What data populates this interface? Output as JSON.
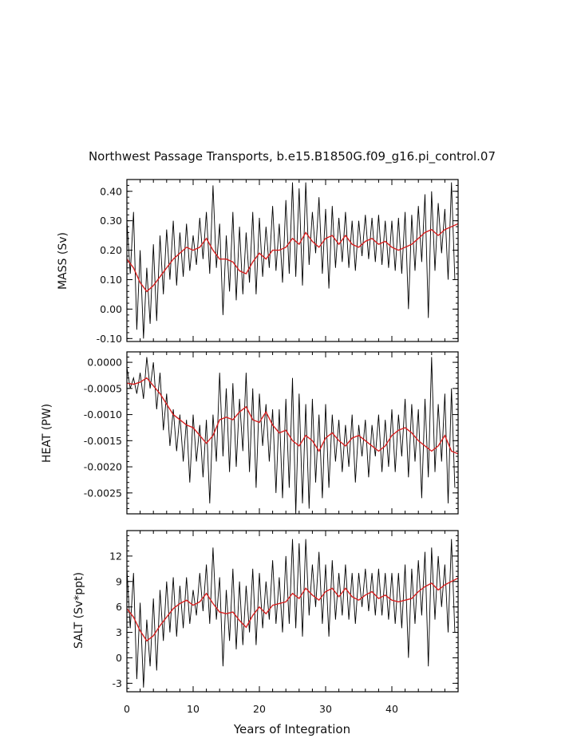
{
  "chart_data": {
    "type": "line",
    "title": "Northwest Passage Transports, b.e15.B1850G.f09_g16.pi_control.07",
    "xlabel": "Years of Integration",
    "xlim": [
      0,
      50
    ],
    "x_ticks": [
      "0",
      "10",
      "20",
      "30",
      "40"
    ],
    "series_colors": {
      "raw": "#000000",
      "smoothed": "#d62020"
    },
    "panels": [
      {
        "name": "mass",
        "ylabel": "MASS (Sv)",
        "ylim": [
          -0.11,
          0.44
        ],
        "y_ticks": [
          "0.40",
          "0.30",
          "0.20",
          "0.10",
          "0.00",
          "-0.10"
        ],
        "smoothed": {
          "x": [
            0,
            1,
            2,
            3,
            4,
            5,
            6,
            7,
            8,
            9,
            10,
            11,
            12,
            13,
            14,
            15,
            16,
            17,
            18,
            19,
            20,
            21,
            22,
            23,
            24,
            25,
            26,
            27,
            28,
            29,
            30,
            31,
            32,
            33,
            34,
            35,
            36,
            37,
            38,
            39,
            40,
            41,
            42,
            43,
            44,
            45,
            46,
            47,
            48,
            49,
            50
          ],
          "values": [
            0.17,
            0.14,
            0.09,
            0.06,
            0.08,
            0.11,
            0.14,
            0.17,
            0.19,
            0.21,
            0.2,
            0.21,
            0.24,
            0.2,
            0.17,
            0.17,
            0.16,
            0.13,
            0.12,
            0.16,
            0.19,
            0.17,
            0.2,
            0.2,
            0.21,
            0.24,
            0.22,
            0.26,
            0.23,
            0.21,
            0.24,
            0.25,
            0.22,
            0.25,
            0.22,
            0.21,
            0.23,
            0.24,
            0.22,
            0.23,
            0.21,
            0.2,
            0.21,
            0.22,
            0.24,
            0.26,
            0.27,
            0.25,
            0.27,
            0.28,
            0.29
          ]
        },
        "raw": {
          "x": [
            0,
            0.5,
            1,
            1.5,
            2,
            2.5,
            3,
            3.5,
            4,
            4.5,
            5,
            5.5,
            6,
            6.5,
            7,
            7.5,
            8,
            8.5,
            9,
            9.5,
            10,
            10.5,
            11,
            11.5,
            12,
            12.5,
            13,
            13.5,
            14,
            14.5,
            15,
            15.5,
            16,
            16.5,
            17,
            17.5,
            18,
            18.5,
            19,
            19.5,
            20,
            20.5,
            21,
            21.5,
            22,
            22.5,
            23,
            23.5,
            24,
            24.5,
            25,
            25.5,
            26,
            26.5,
            27,
            27.5,
            28,
            28.5,
            29,
            29.5,
            30,
            30.5,
            31,
            31.5,
            32,
            32.5,
            33,
            33.5,
            34,
            34.5,
            35,
            35.5,
            36,
            36.5,
            37,
            37.5,
            38,
            38.5,
            39,
            39.5,
            40,
            40.5,
            41,
            41.5,
            42,
            42.5,
            43,
            43.5,
            44,
            44.5,
            45,
            45.5,
            46,
            46.5,
            47,
            47.5,
            48,
            48.5,
            49,
            49.5
          ],
          "values": [
            0.3,
            0.12,
            0.33,
            -0.07,
            0.2,
            -0.1,
            0.14,
            -0.05,
            0.22,
            -0.04,
            0.25,
            0.05,
            0.27,
            0.1,
            0.3,
            0.08,
            0.26,
            0.11,
            0.29,
            0.13,
            0.25,
            0.15,
            0.31,
            0.17,
            0.33,
            0.12,
            0.42,
            0.14,
            0.29,
            -0.02,
            0.25,
            0.06,
            0.33,
            0.03,
            0.28,
            0.05,
            0.26,
            0.09,
            0.33,
            0.05,
            0.31,
            0.11,
            0.28,
            0.14,
            0.35,
            0.13,
            0.29,
            0.09,
            0.37,
            0.12,
            0.43,
            0.11,
            0.41,
            0.08,
            0.43,
            0.15,
            0.33,
            0.19,
            0.38,
            0.12,
            0.34,
            0.07,
            0.35,
            0.14,
            0.31,
            0.16,
            0.33,
            0.14,
            0.3,
            0.13,
            0.3,
            0.18,
            0.32,
            0.17,
            0.31,
            0.16,
            0.32,
            0.15,
            0.3,
            0.14,
            0.3,
            0.13,
            0.31,
            0.12,
            0.33,
            0.0,
            0.32,
            0.13,
            0.35,
            0.16,
            0.39,
            -0.03,
            0.4,
            0.13,
            0.36,
            0.19,
            0.34,
            0.1,
            0.43,
            0.1
          ]
        }
      },
      {
        "name": "heat",
        "ylabel": "HEAT (PW)",
        "ylim": [
          -0.0029,
          0.0002
        ],
        "y_ticks": [
          "0.0000",
          "-0.0005",
          "-0.0010",
          "-0.0015",
          "-0.0020",
          "-0.0025"
        ],
        "smoothed": {
          "x": [
            0,
            1,
            2,
            3,
            4,
            5,
            6,
            7,
            8,
            9,
            10,
            11,
            12,
            13,
            14,
            15,
            16,
            17,
            18,
            19,
            20,
            21,
            22,
            23,
            24,
            25,
            26,
            27,
            28,
            29,
            30,
            31,
            32,
            33,
            34,
            35,
            36,
            37,
            38,
            39,
            40,
            41,
            42,
            43,
            44,
            45,
            46,
            47,
            48,
            49,
            50
          ],
          "values": [
            -0.0004,
            -0.00042,
            -0.00038,
            -0.0003,
            -0.00045,
            -0.0006,
            -0.0008,
            -0.001,
            -0.0011,
            -0.0012,
            -0.00125,
            -0.0014,
            -0.00155,
            -0.0014,
            -0.0011,
            -0.00105,
            -0.0011,
            -0.00095,
            -0.00085,
            -0.0011,
            -0.00115,
            -0.00095,
            -0.0012,
            -0.00135,
            -0.0013,
            -0.0015,
            -0.0016,
            -0.0014,
            -0.0015,
            -0.0017,
            -0.00145,
            -0.00135,
            -0.0015,
            -0.0016,
            -0.00145,
            -0.0014,
            -0.0015,
            -0.0016,
            -0.0017,
            -0.0016,
            -0.0014,
            -0.0013,
            -0.00125,
            -0.00135,
            -0.0015,
            -0.0016,
            -0.0017,
            -0.0016,
            -0.0014,
            -0.0017,
            -0.00175
          ]
        },
        "raw": {
          "x": [
            0,
            0.5,
            1,
            1.5,
            2,
            2.5,
            3,
            3.5,
            4,
            4.5,
            5,
            5.5,
            6,
            6.5,
            7,
            7.5,
            8,
            8.5,
            9,
            9.5,
            10,
            10.5,
            11,
            11.5,
            12,
            12.5,
            13,
            13.5,
            14,
            14.5,
            15,
            15.5,
            16,
            16.5,
            17,
            17.5,
            18,
            18.5,
            19,
            19.5,
            20,
            20.5,
            21,
            21.5,
            22,
            22.5,
            23,
            23.5,
            24,
            24.5,
            25,
            25.5,
            26,
            26.5,
            27,
            27.5,
            28,
            28.5,
            29,
            29.5,
            30,
            30.5,
            31,
            31.5,
            32,
            32.5,
            33,
            33.5,
            34,
            34.5,
            35,
            35.5,
            36,
            36.5,
            37,
            37.5,
            38,
            38.5,
            39,
            39.5,
            40,
            40.5,
            41,
            41.5,
            42,
            42.5,
            43,
            43.5,
            44,
            44.5,
            45,
            45.5,
            46,
            46.5,
            47,
            47.5,
            48,
            48.5,
            49,
            49.5
          ],
          "values": [
            -0.0001,
            -0.0005,
            -0.0003,
            -0.0006,
            -0.0002,
            -0.0007,
            0.0001,
            -0.0005,
            0.0,
            -0.0009,
            -0.0002,
            -0.0013,
            -0.0006,
            -0.0016,
            -0.0009,
            -0.0017,
            -0.001,
            -0.0019,
            -0.0011,
            -0.0023,
            -0.001,
            -0.0019,
            -0.0012,
            -0.0022,
            -0.0011,
            -0.0027,
            -0.001,
            -0.0019,
            -0.0002,
            -0.0018,
            -0.0005,
            -0.0021,
            -0.0004,
            -0.002,
            -0.0007,
            -0.0017,
            -0.0002,
            -0.0021,
            -0.0005,
            -0.0024,
            -0.0006,
            -0.0016,
            -0.0008,
            -0.0019,
            -0.0009,
            -0.0025,
            -0.0009,
            -0.0026,
            -0.0007,
            -0.0024,
            -0.0003,
            -0.0029,
            -0.0006,
            -0.0027,
            -0.0008,
            -0.0028,
            -0.0007,
            -0.0023,
            -0.001,
            -0.0026,
            -0.0008,
            -0.0024,
            -0.001,
            -0.0019,
            -0.0011,
            -0.0021,
            -0.0012,
            -0.002,
            -0.001,
            -0.0023,
            -0.0012,
            -0.0018,
            -0.0011,
            -0.0022,
            -0.0012,
            -0.0018,
            -0.001,
            -0.0021,
            -0.0011,
            -0.002,
            -0.0009,
            -0.0021,
            -0.001,
            -0.0018,
            -0.0007,
            -0.0022,
            -0.0008,
            -0.0019,
            -0.0009,
            -0.0026,
            -0.0007,
            -0.0022,
            0.0001,
            -0.0021,
            -0.0008,
            -0.0019,
            -0.0006,
            -0.0027,
            -0.0005,
            -0.0024
          ]
        }
      },
      {
        "name": "salt",
        "ylabel": "SALT (Sv*ppt)",
        "ylim": [
          -4,
          15
        ],
        "y_ticks": [
          "12",
          "9",
          "6",
          "3",
          "0",
          "-3"
        ],
        "smoothed": {
          "x": [
            0,
            1,
            2,
            3,
            4,
            5,
            6,
            7,
            8,
            9,
            10,
            11,
            12,
            13,
            14,
            15,
            16,
            17,
            18,
            19,
            20,
            21,
            22,
            23,
            24,
            25,
            26,
            27,
            28,
            29,
            30,
            31,
            32,
            33,
            34,
            35,
            36,
            37,
            38,
            39,
            40,
            41,
            42,
            43,
            44,
            45,
            46,
            47,
            48,
            49,
            50
          ],
          "values": [
            5.8,
            4.8,
            3.2,
            2.0,
            2.6,
            3.8,
            4.8,
            5.8,
            6.4,
            6.8,
            6.2,
            6.6,
            7.6,
            6.4,
            5.4,
            5.2,
            5.4,
            4.4,
            3.6,
            5.0,
            6.0,
            5.2,
            6.2,
            6.4,
            6.6,
            7.6,
            7.0,
            8.2,
            7.4,
            6.8,
            7.8,
            8.2,
            7.2,
            8.2,
            7.2,
            6.8,
            7.4,
            7.8,
            7.0,
            7.4,
            6.8,
            6.6,
            6.8,
            7.0,
            7.8,
            8.4,
            8.8,
            8.0,
            8.6,
            9.0,
            9.4
          ]
        },
        "raw": {
          "x": [
            0,
            0.5,
            1,
            1.5,
            2,
            2.5,
            3,
            3.5,
            4,
            4.5,
            5,
            5.5,
            6,
            6.5,
            7,
            7.5,
            8,
            8.5,
            9,
            9.5,
            10,
            10.5,
            11,
            11.5,
            12,
            12.5,
            13,
            13.5,
            14,
            14.5,
            15,
            15.5,
            16,
            16.5,
            17,
            17.5,
            18,
            18.5,
            19,
            19.5,
            20,
            20.5,
            21,
            21.5,
            22,
            22.5,
            23,
            23.5,
            24,
            24.5,
            25,
            25.5,
            26,
            26.5,
            27,
            27.5,
            28,
            28.5,
            29,
            29.5,
            30,
            30.5,
            31,
            31.5,
            32,
            32.5,
            33,
            33.5,
            34,
            34.5,
            35,
            35.5,
            36,
            36.5,
            37,
            37.5,
            38,
            38.5,
            39,
            39.5,
            40,
            40.5,
            41,
            41.5,
            42,
            42.5,
            43,
            43.5,
            44,
            44.5,
            45,
            45.5,
            46,
            46.5,
            47,
            47.5,
            48,
            48.5,
            49,
            49.5
          ],
          "values": [
            10.5,
            3.5,
            10.0,
            -2.5,
            6.5,
            -3.5,
            4.5,
            -1.0,
            7.0,
            -1.5,
            8.0,
            2.0,
            9.0,
            3.0,
            9.5,
            2.5,
            8.5,
            3.5,
            9.5,
            4.0,
            8.0,
            5.0,
            10.0,
            5.5,
            11.0,
            4.0,
            13.0,
            4.5,
            9.5,
            -1.0,
            8.0,
            2.0,
            10.5,
            1.0,
            9.0,
            1.5,
            8.5,
            3.0,
            10.5,
            1.5,
            10.0,
            3.5,
            9.0,
            4.5,
            11.5,
            4.0,
            9.5,
            3.0,
            12.0,
            4.0,
            14.0,
            3.5,
            13.5,
            2.5,
            14.0,
            5.0,
            11.0,
            6.0,
            12.5,
            4.0,
            11.0,
            2.5,
            11.5,
            4.5,
            10.0,
            5.0,
            11.0,
            4.5,
            10.0,
            4.0,
            10.0,
            6.0,
            10.5,
            5.5,
            10.0,
            5.0,
            10.5,
            5.0,
            10.0,
            4.5,
            10.0,
            4.0,
            10.0,
            3.5,
            11.0,
            0.0,
            10.5,
            4.0,
            11.5,
            5.0,
            12.5,
            -1.0,
            13.0,
            4.5,
            12.0,
            6.0,
            11.0,
            3.0,
            14.0,
            3.0
          ]
        }
      }
    ]
  }
}
